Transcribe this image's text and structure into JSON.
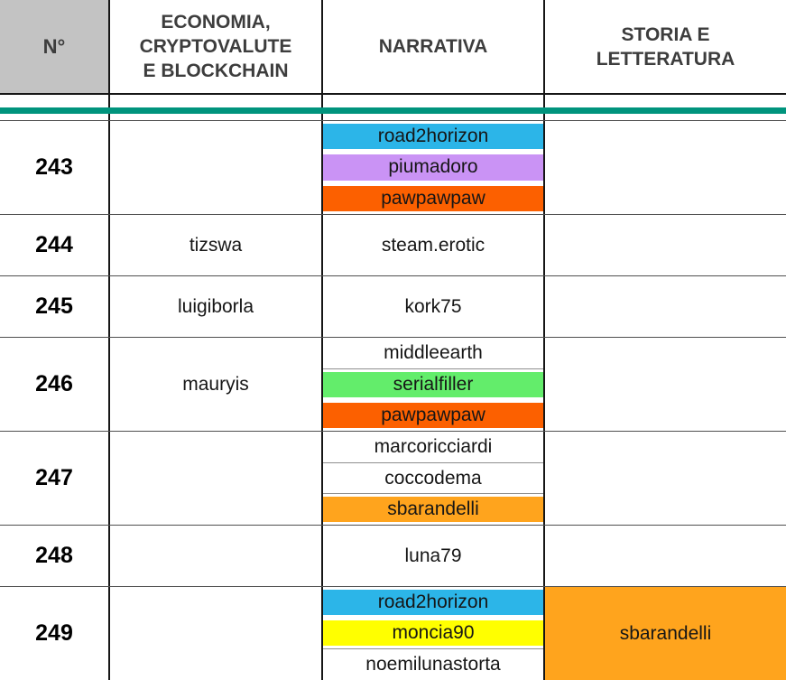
{
  "header": {
    "columns": [
      {
        "key": "num",
        "label": "N°"
      },
      {
        "key": "economia",
        "label": "ECONOMIA,\nCRYPTOVALUTE\nE BLOCKCHAIN"
      },
      {
        "key": "narrativa",
        "label": "NARRATIVA"
      },
      {
        "key": "storia",
        "label": "STORIA E\nLETTERATURA"
      }
    ]
  },
  "colors": {
    "header_num_bg": "#c3c3c3",
    "separator_band": "#00947d",
    "chip_cyan": "#2cb5e8",
    "chip_purple": "#ca93f5",
    "chip_orange_red": "#fc6000",
    "chip_green": "#63ed6b",
    "chip_orange": "#ffa41d",
    "chip_yellow": "#ffff00"
  },
  "rows": [
    {
      "num": "243",
      "economia": [],
      "narrativa": [
        {
          "text": "road2horizon",
          "bg": "#2cb5e8"
        },
        {
          "text": "piumadoro",
          "bg": "#ca93f5"
        },
        {
          "text": "pawpawpaw",
          "bg": "#fc6000"
        }
      ],
      "storia": []
    },
    {
      "num": "244",
      "economia": [
        {
          "text": "tizswa"
        }
      ],
      "narrativa": [
        {
          "text": "steam.erotic"
        }
      ],
      "storia": []
    },
    {
      "num": "245",
      "economia": [
        {
          "text": "luigiborla"
        }
      ],
      "narrativa": [
        {
          "text": "kork75"
        }
      ],
      "storia": []
    },
    {
      "num": "246",
      "economia": [
        {
          "text": "mauryis"
        }
      ],
      "narrativa": [
        {
          "text": "middleearth"
        },
        {
          "text": "serialfiller",
          "bg": "#63ed6b"
        },
        {
          "text": "pawpawpaw",
          "bg": "#fc6000"
        }
      ],
      "storia": []
    },
    {
      "num": "247",
      "economia": [],
      "narrativa": [
        {
          "text": "marcoricciardi"
        },
        {
          "text": "coccodema"
        },
        {
          "text": "sbarandelli",
          "bg": "#ffa41d"
        }
      ],
      "storia": []
    },
    {
      "num": "248",
      "economia": [],
      "narrativa": [
        {
          "text": "luna79"
        }
      ],
      "storia": []
    },
    {
      "num": "249",
      "economia": [],
      "narrativa": [
        {
          "text": "road2horizon",
          "bg": "#2cb5e8"
        },
        {
          "text": "moncia90",
          "bg": "#ffff00"
        },
        {
          "text": "noemilunastorta"
        }
      ],
      "storia": [
        {
          "text": "sbarandelli",
          "bg": "#ffa41d",
          "fill": true
        }
      ]
    }
  ]
}
